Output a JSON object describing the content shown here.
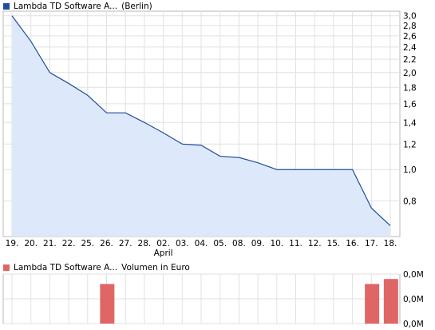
{
  "chart_data": [
    {
      "type": "area",
      "legend": {
        "label": "Lambda TD Software A...",
        "suffix": "(Berlin)",
        "color": "#1f4e9c"
      },
      "x": [
        "19.",
        "20.",
        "21.",
        "22.",
        "25.",
        "26.",
        "27.",
        "28.",
        "02.",
        "03.",
        "04.",
        "05.",
        "08.",
        "09.",
        "10.",
        "11.",
        "12.",
        "15.",
        "16.",
        "17.",
        "18."
      ],
      "month_label": "April",
      "month_label_at": "02.",
      "values": [
        3.0,
        2.5,
        2.0,
        1.85,
        1.7,
        1.5,
        1.5,
        1.4,
        1.3,
        1.2,
        1.19,
        1.1,
        1.09,
        1.05,
        1.0,
        1.0,
        1.0,
        1.0,
        1.0,
        0.76,
        0.67
      ],
      "scale": "log",
      "yticks": [
        "3,0",
        "2,8",
        "2,6",
        "2,4",
        "2,2",
        "2,0",
        "1,8",
        "1,6",
        "1,4",
        "1,2",
        "1,0",
        "0,8"
      ],
      "ytick_values": [
        3.0,
        2.8,
        2.6,
        2.4,
        2.2,
        2.0,
        1.8,
        1.6,
        1.4,
        1.2,
        1.0,
        0.8
      ],
      "ylim": [
        0.62,
        3.1
      ],
      "line_color": "#1f4e9c",
      "fill_color": "#dde9fa",
      "grid": true
    },
    {
      "type": "bar",
      "legend": {
        "label": "Lambda TD Software A...",
        "suffix": "Volumen in Euro",
        "color": "#e06666"
      },
      "x": [
        "19.",
        "20.",
        "21.",
        "22.",
        "25.",
        "26.",
        "27.",
        "28.",
        "02.",
        "03.",
        "04.",
        "05.",
        "08.",
        "09.",
        "10.",
        "11.",
        "12.",
        "15.",
        "16.",
        "17.",
        "18."
      ],
      "values": [
        0,
        0,
        0,
        0,
        0,
        0.8,
        0,
        0,
        0,
        0,
        0,
        0,
        0,
        0,
        0,
        0,
        0,
        0,
        0,
        0.8,
        0.9
      ],
      "yticks": [
        "0,0M",
        "0,0M",
        "0,0M"
      ],
      "ylim": [
        0,
        1
      ],
      "bar_color": "#e06666",
      "grid": true
    }
  ]
}
